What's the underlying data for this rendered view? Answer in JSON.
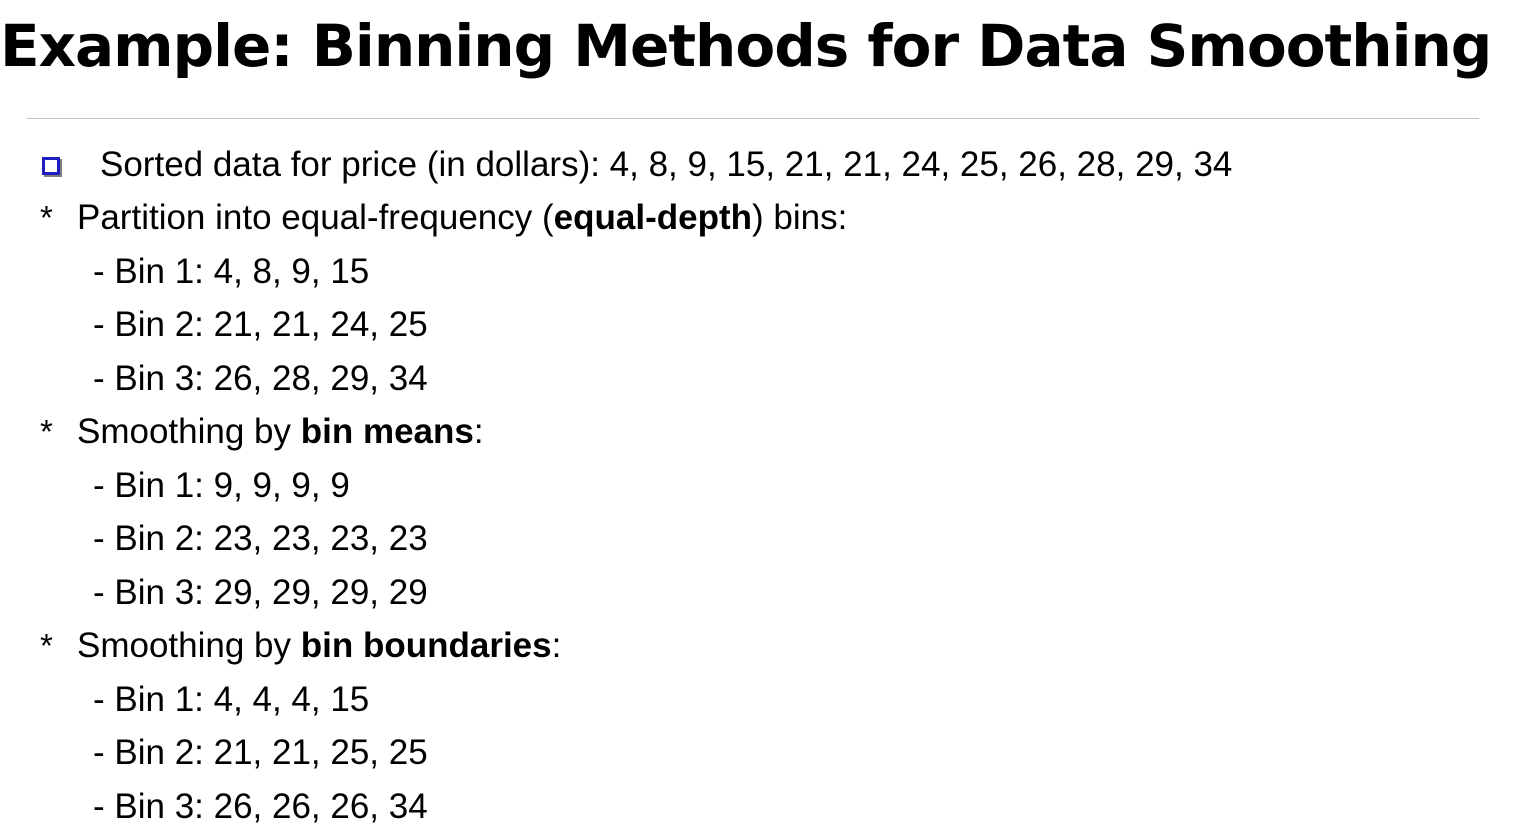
{
  "title": "Example: Binning Methods for Data Smoothing",
  "intro": "Sorted data for price (in dollars): 4, 8, 9, 15, 21, 21, 24, 25, 26, 28, 29, 34",
  "bullet_marker": "*",
  "sections": [
    {
      "prefix": "Partition into equal-frequency (",
      "bold": "equal-depth",
      "suffix": ") bins:",
      "bins": [
        "- Bin 1: 4, 8, 9, 15",
        "- Bin 2: 21, 21, 24, 25",
        "- Bin 3: 26, 28, 29, 34"
      ]
    },
    {
      "prefix": "Smoothing by ",
      "bold": "bin means",
      "suffix": ":",
      "bins": [
        "- Bin 1: 9, 9, 9, 9",
        "- Bin 2: 23, 23, 23, 23",
        "- Bin 3: 29, 29, 29, 29"
      ]
    },
    {
      "prefix": "Smoothing by ",
      "bold": "bin boundaries",
      "suffix": ":",
      "bins": [
        "- Bin 1: 4, 4, 4, 15",
        "- Bin 2: 21, 21, 25, 25",
        "- Bin 3: 26, 26, 26, 34"
      ]
    }
  ],
  "colors": {
    "bullet_box": "#1f1fbf",
    "rule": "#bfbfbf",
    "text": "#000000"
  }
}
